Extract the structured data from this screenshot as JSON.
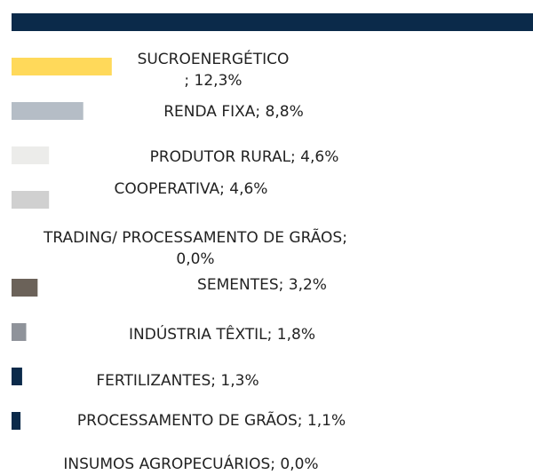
{
  "chart_data": {
    "type": "bar",
    "orientation": "horizontal",
    "values": [
      64,
      12.3,
      8.8,
      4.6,
      4.6,
      0.0,
      3.2,
      1.8,
      1.3,
      1.1,
      0.0
    ],
    "value_labels": [
      null,
      [
        "SUCROENERGÉTICO",
        "; 12,3%"
      ],
      [
        "RENDA FIXA; 8,8%"
      ],
      [
        "PRODUTOR RURAL; 4,6%"
      ],
      [
        "COOPERATIVA; 4,6%"
      ],
      [
        "TRADING/ PROCESSAMENTO DE GRÃOS;",
        "0,0%"
      ],
      [
        "SEMENTES; 3,2%"
      ],
      [
        "INDÚSTRIA TÊXTIL; 1,8%"
      ],
      [
        "FERTILIZANTES; 1,3%"
      ],
      [
        "PROCESSAMENTO DE GRÃOS; 1,1%"
      ],
      [
        "INSUMOS AGROPECUÁRIOS; 0,0%"
      ]
    ],
    "colors": [
      "#0b2a4a",
      "#ffd95a",
      "#b5bdc6",
      "#ececea",
      "#d0d0d0",
      "#aba7a1",
      "#6b6259",
      "#8f939a",
      "#0b2a4a",
      "#0b2a4a",
      "#0b2a4a"
    ],
    "xlim": [
      0,
      64
    ]
  }
}
